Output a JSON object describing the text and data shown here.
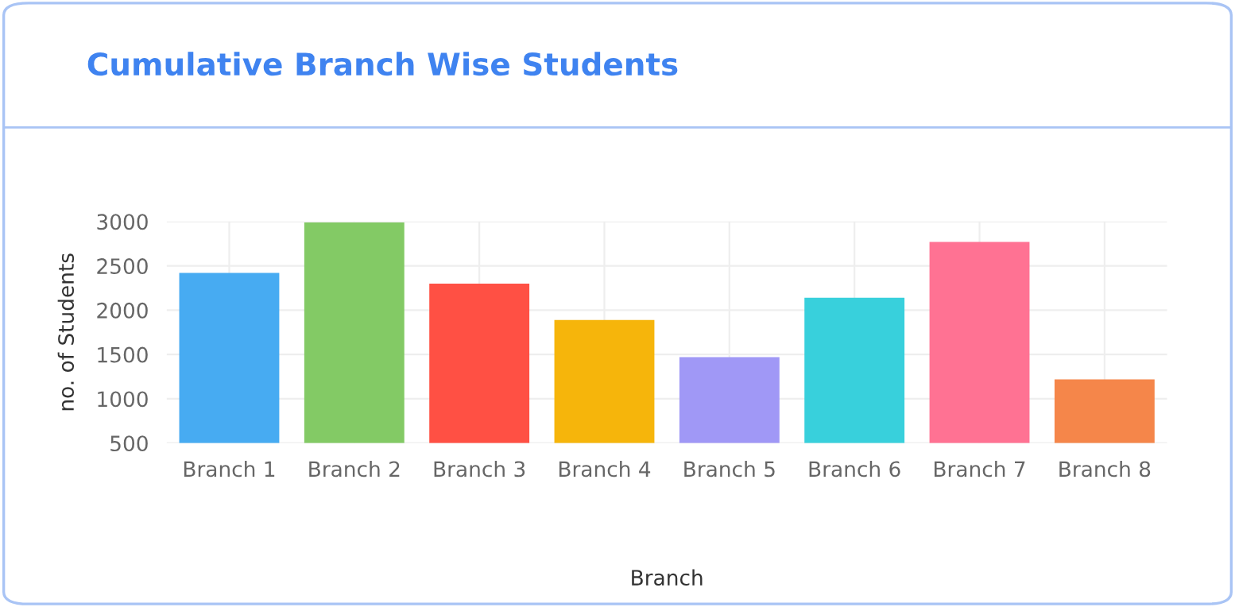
{
  "chart_data": {
    "type": "bar",
    "title": "Cumulative Branch Wise Students",
    "xlabel": "Branch",
    "ylabel": "no. of Students",
    "categories": [
      "Branch 1",
      "Branch 2",
      "Branch 3",
      "Branch 4",
      "Branch 5",
      "Branch 6",
      "Branch 7",
      "Branch 8"
    ],
    "values": [
      2420,
      2990,
      2300,
      1890,
      1470,
      2140,
      2770,
      1220
    ],
    "colors": [
      "#47abf2",
      "#83ca65",
      "#ff5044",
      "#f6b50b",
      "#a098f6",
      "#38d0dc",
      "#ff7293",
      "#f5864a"
    ],
    "ylim": [
      500,
      3000
    ],
    "yticks": [
      500,
      1000,
      1500,
      2000,
      2500,
      3000
    ],
    "grid": true
  }
}
